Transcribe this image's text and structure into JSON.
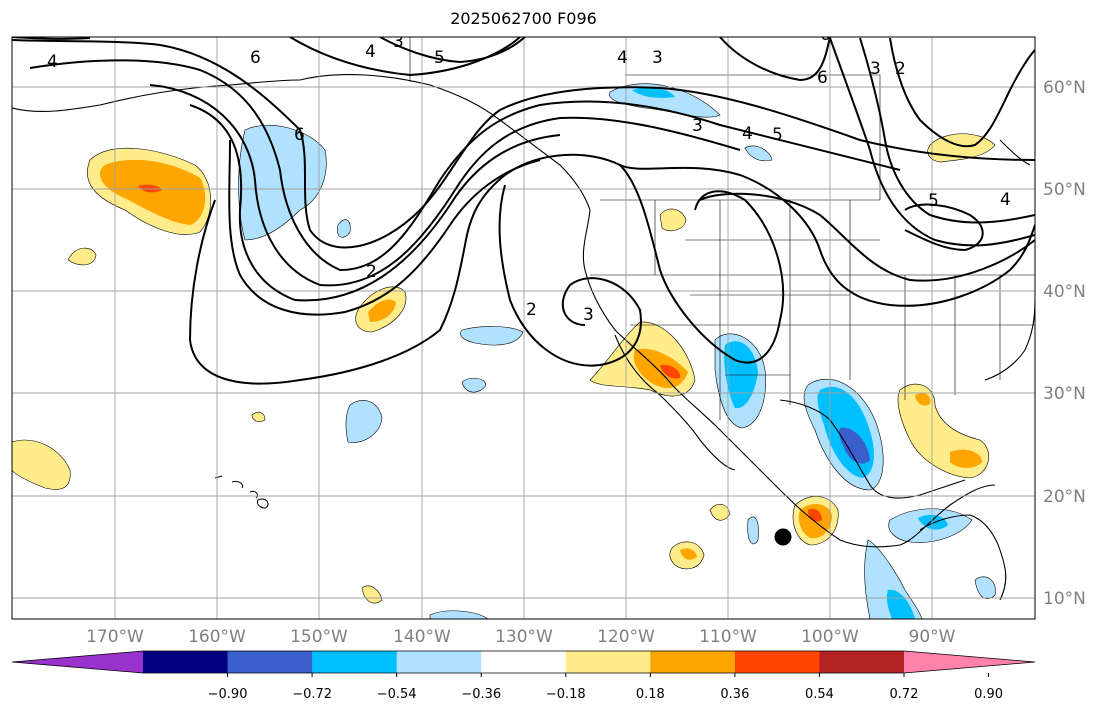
{
  "title": "2025062700 F096",
  "lon_labels": [
    "170°W",
    "160°W",
    "150°W",
    "140°W",
    "130°W",
    "120°W",
    "110°W",
    "100°W",
    "90°W"
  ],
  "lat_labels": [
    "60°N",
    "50°N",
    "40°N",
    "30°N",
    "20°N",
    "10°N"
  ],
  "colorbar": {
    "ticks": [
      "−0.90",
      "−0.72",
      "−0.54",
      "−0.36",
      "−0.18",
      "0.18",
      "0.36",
      "0.54",
      "0.72",
      "0.90"
    ],
    "colors": [
      "#9932cc",
      "#000080",
      "#3a5fcd",
      "#00bfff",
      "#b0e2ff",
      "#ffffff",
      "#ffec8b",
      "#ffa500",
      "#ff4500",
      "#b22222",
      "#ff82ab"
    ],
    "extend": "both"
  },
  "contour_labels": [
    "4",
    "6",
    "3",
    "4",
    "5",
    "6",
    "4",
    "3",
    "4",
    "5",
    "3",
    "6",
    "3",
    "2",
    "5",
    "4",
    "2",
    "2",
    "3",
    "6"
  ],
  "marker": "black-dot",
  "grid": true
}
